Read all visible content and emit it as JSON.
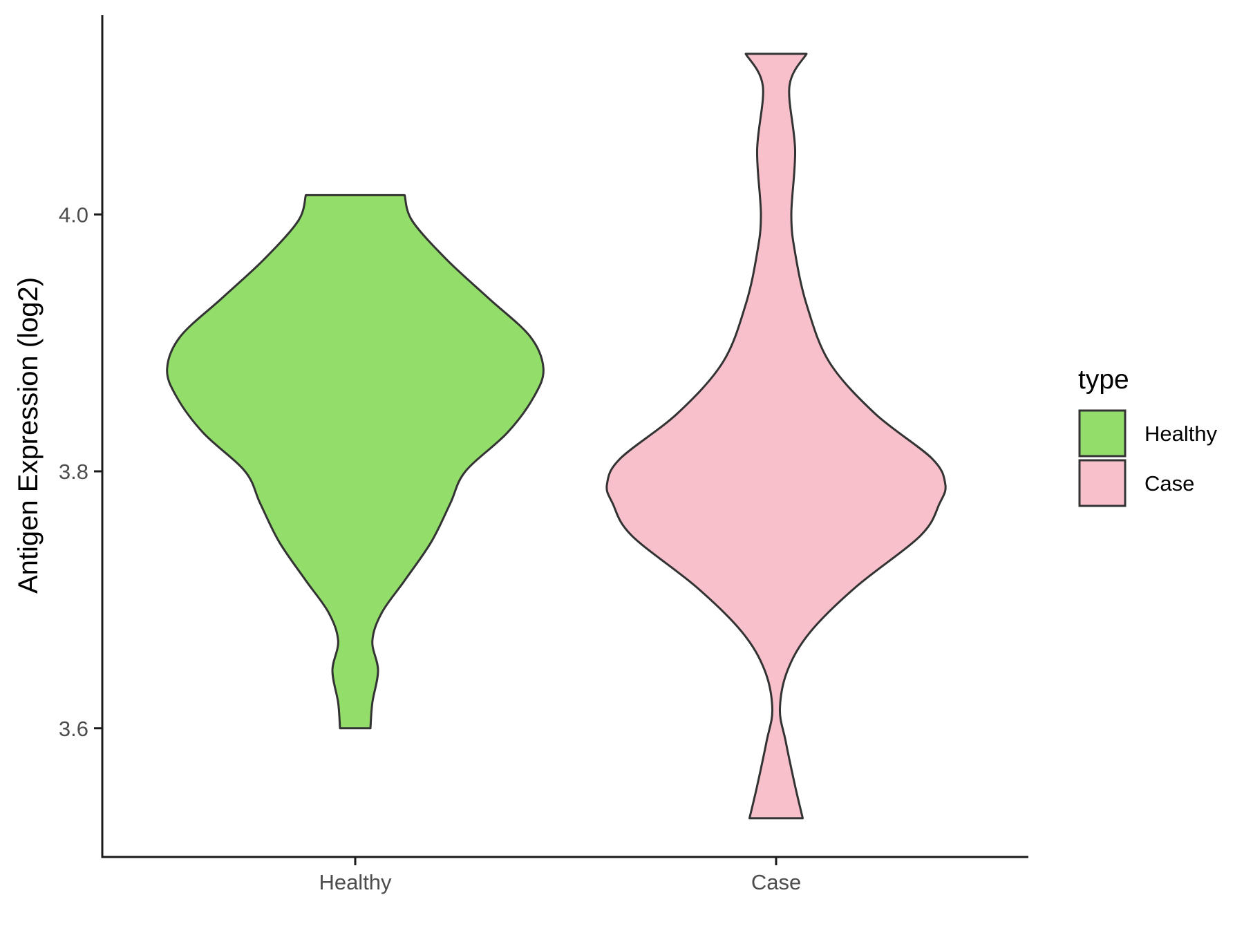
{
  "chart_data": {
    "type": "violin",
    "xlabel": "",
    "ylabel": "Antigen Expression (log2)",
    "categories": [
      "Healthy",
      "Case"
    ],
    "ylim": [
      3.52,
      4.16
    ],
    "yticks": [
      3.6,
      3.8,
      4.0
    ],
    "ytick_labels": [
      "3.6",
      "3.8",
      "4.0"
    ],
    "grid": false,
    "legend": {
      "title": "type",
      "position": "right",
      "items": [
        {
          "label": "Healthy",
          "color": "#93DD6B"
        },
        {
          "label": "Case",
          "color": "#F7C0CB"
        }
      ]
    },
    "series": [
      {
        "category": "Healthy",
        "color": "#93DD6B",
        "min": 3.6,
        "max": 4.015,
        "density_profile": [
          [
            3.6,
            0.08
          ],
          [
            3.62,
            0.09
          ],
          [
            3.645,
            0.12
          ],
          [
            3.668,
            0.09
          ],
          [
            3.69,
            0.14
          ],
          [
            3.715,
            0.26
          ],
          [
            3.745,
            0.4
          ],
          [
            3.775,
            0.5
          ],
          [
            3.8,
            0.58
          ],
          [
            3.83,
            0.8
          ],
          [
            3.858,
            0.94
          ],
          [
            3.88,
            0.99
          ],
          [
            3.905,
            0.92
          ],
          [
            3.935,
            0.7
          ],
          [
            3.965,
            0.48
          ],
          [
            3.995,
            0.3
          ],
          [
            4.015,
            0.26
          ]
        ]
      },
      {
        "category": "Case",
        "color": "#F7C0CB",
        "min": 3.53,
        "max": 4.125,
        "density_profile": [
          [
            3.53,
            0.14
          ],
          [
            3.555,
            0.1
          ],
          [
            3.59,
            0.05
          ],
          [
            3.615,
            0.02
          ],
          [
            3.645,
            0.06
          ],
          [
            3.675,
            0.18
          ],
          [
            3.71,
            0.42
          ],
          [
            3.75,
            0.76
          ],
          [
            3.775,
            0.86
          ],
          [
            3.79,
            0.89
          ],
          [
            3.81,
            0.82
          ],
          [
            3.845,
            0.52
          ],
          [
            3.885,
            0.28
          ],
          [
            3.93,
            0.16
          ],
          [
            3.97,
            0.1
          ],
          [
            4.0,
            0.08
          ],
          [
            4.05,
            0.1
          ],
          [
            4.1,
            0.07
          ],
          [
            4.125,
            0.16
          ]
        ]
      }
    ]
  }
}
